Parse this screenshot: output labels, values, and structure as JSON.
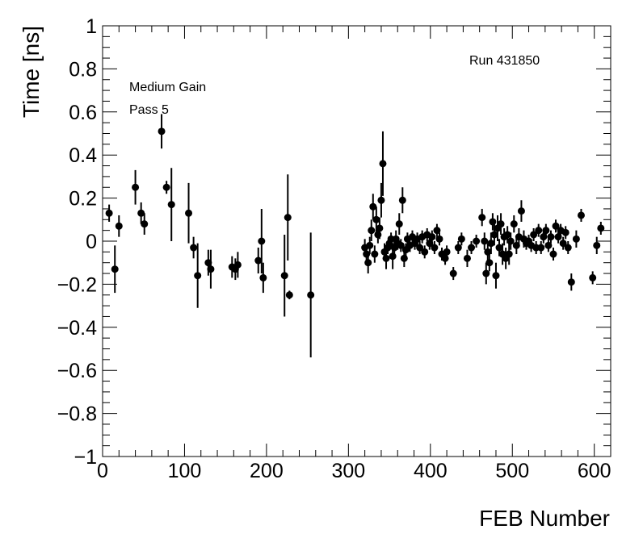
{
  "chart_data": {
    "type": "scatter",
    "xlabel": "FEB Number",
    "ylabel": "Time [ns]",
    "xlim": [
      0,
      620
    ],
    "ylim": [
      -1,
      1
    ],
    "x_ticks": [
      0,
      100,
      200,
      300,
      400,
      500,
      600
    ],
    "y_ticks": [
      -1,
      -0.8,
      -0.6,
      -0.4,
      -0.2,
      0,
      0.2,
      0.4,
      0.6,
      0.8,
      1
    ],
    "y_tick_labels": [
      "−1",
      "−0.8",
      "−0.6",
      "−0.4",
      "−0.2",
      "0",
      "0.2",
      "0.4",
      "0.6",
      "0.8",
      "1"
    ],
    "annotations": {
      "run": "Run 431850",
      "gain": "Medium Gain",
      "pass": "Pass 5"
    },
    "grid": false,
    "marker_color": "#000000",
    "series": [
      {
        "points": [
          {
            "x": 8,
            "y": 0.13,
            "err": 0.04
          },
          {
            "x": 15,
            "y": -0.13,
            "err": 0.11
          },
          {
            "x": 20,
            "y": 0.07,
            "err": 0.05
          },
          {
            "x": 40,
            "y": 0.25,
            "err": 0.08
          },
          {
            "x": 47,
            "y": 0.13,
            "err": 0.05
          },
          {
            "x": 51,
            "y": 0.08,
            "err": 0.05
          },
          {
            "x": 72,
            "y": 0.51,
            "err": 0.08
          },
          {
            "x": 78,
            "y": 0.25,
            "err": 0.03
          },
          {
            "x": 84,
            "y": 0.17,
            "err": 0.17
          },
          {
            "x": 105,
            "y": 0.13,
            "err": 0.14
          },
          {
            "x": 111,
            "y": -0.03,
            "err": 0.05
          },
          {
            "x": 116,
            "y": -0.16,
            "err": 0.15
          },
          {
            "x": 129,
            "y": -0.1,
            "err": 0.06
          },
          {
            "x": 132,
            "y": -0.13,
            "err": 0.09
          },
          {
            "x": 158,
            "y": -0.12,
            "err": 0.05
          },
          {
            "x": 162,
            "y": -0.13,
            "err": 0.05
          },
          {
            "x": 165,
            "y": -0.11,
            "err": 0.06
          },
          {
            "x": 190,
            "y": -0.09,
            "err": 0.06
          },
          {
            "x": 194,
            "y": 0.0,
            "err": 0.15
          },
          {
            "x": 196,
            "y": -0.17,
            "err": 0.07
          },
          {
            "x": 222,
            "y": -0.16,
            "err": 0.19
          },
          {
            "x": 226,
            "y": 0.11,
            "err": 0.2
          },
          {
            "x": 228,
            "y": -0.25,
            "err": 0.02
          },
          {
            "x": 254,
            "y": -0.25,
            "err": 0.29
          },
          {
            "x": 320,
            "y": -0.03,
            "err": 0.04
          },
          {
            "x": 322,
            "y": -0.06,
            "err": 0.04
          },
          {
            "x": 324,
            "y": -0.1,
            "err": 0.05
          },
          {
            "x": 326,
            "y": -0.02,
            "err": 0.04
          },
          {
            "x": 328,
            "y": 0.05,
            "err": 0.05
          },
          {
            "x": 330,
            "y": 0.16,
            "err": 0.06
          },
          {
            "x": 332,
            "y": -0.06,
            "err": 0.04
          },
          {
            "x": 334,
            "y": 0.1,
            "err": 0.06
          },
          {
            "x": 336,
            "y": 0.03,
            "err": 0.04
          },
          {
            "x": 338,
            "y": 0.06,
            "err": 0.05
          },
          {
            "x": 340,
            "y": 0.19,
            "err": 0.08
          },
          {
            "x": 342,
            "y": 0.36,
            "err": 0.15
          },
          {
            "x": 344,
            "y": -0.05,
            "err": 0.04
          },
          {
            "x": 346,
            "y": -0.08,
            "err": 0.05
          },
          {
            "x": 348,
            "y": -0.03,
            "err": 0.03
          },
          {
            "x": 350,
            "y": -0.01,
            "err": 0.03
          },
          {
            "x": 352,
            "y": 0.01,
            "err": 0.03
          },
          {
            "x": 354,
            "y": -0.07,
            "err": 0.06
          },
          {
            "x": 356,
            "y": -0.03,
            "err": 0.03
          },
          {
            "x": 358,
            "y": 0.01,
            "err": 0.04
          },
          {
            "x": 360,
            "y": -0.01,
            "err": 0.03
          },
          {
            "x": 362,
            "y": 0.08,
            "err": 0.05
          },
          {
            "x": 364,
            "y": -0.02,
            "err": 0.03
          },
          {
            "x": 366,
            "y": 0.19,
            "err": 0.06
          },
          {
            "x": 368,
            "y": -0.08,
            "err": 0.04
          },
          {
            "x": 370,
            "y": -0.04,
            "err": 0.03
          },
          {
            "x": 372,
            "y": 0.01,
            "err": 0.03
          },
          {
            "x": 375,
            "y": -0.02,
            "err": 0.03
          },
          {
            "x": 378,
            "y": 0.02,
            "err": 0.03
          },
          {
            "x": 381,
            "y": -0.01,
            "err": 0.03
          },
          {
            "x": 384,
            "y": 0.01,
            "err": 0.03
          },
          {
            "x": 387,
            "y": -0.03,
            "err": 0.03
          },
          {
            "x": 390,
            "y": 0.02,
            "err": 0.03
          },
          {
            "x": 393,
            "y": -0.05,
            "err": 0.03
          },
          {
            "x": 396,
            "y": 0.03,
            "err": 0.03
          },
          {
            "x": 399,
            "y": -0.01,
            "err": 0.03
          },
          {
            "x": 402,
            "y": 0.02,
            "err": 0.03
          },
          {
            "x": 405,
            "y": -0.03,
            "err": 0.03
          },
          {
            "x": 408,
            "y": 0.05,
            "err": 0.03
          },
          {
            "x": 411,
            "y": 0.01,
            "err": 0.03
          },
          {
            "x": 414,
            "y": -0.06,
            "err": 0.03
          },
          {
            "x": 418,
            "y": -0.08,
            "err": 0.03
          },
          {
            "x": 420,
            "y": -0.05,
            "err": 0.03
          },
          {
            "x": 428,
            "y": -0.15,
            "err": 0.03
          },
          {
            "x": 434,
            "y": -0.03,
            "err": 0.03
          },
          {
            "x": 438,
            "y": 0.01,
            "err": 0.03
          },
          {
            "x": 445,
            "y": -0.08,
            "err": 0.04
          },
          {
            "x": 450,
            "y": -0.03,
            "err": 0.03
          },
          {
            "x": 456,
            "y": 0.0,
            "err": 0.03
          },
          {
            "x": 463,
            "y": 0.11,
            "err": 0.04
          },
          {
            "x": 466,
            "y": 0.0,
            "err": 0.04
          },
          {
            "x": 468,
            "y": -0.15,
            "err": 0.05
          },
          {
            "x": 470,
            "y": -0.05,
            "err": 0.04
          },
          {
            "x": 472,
            "y": -0.1,
            "err": 0.04
          },
          {
            "x": 474,
            "y": -0.01,
            "err": 0.05
          },
          {
            "x": 476,
            "y": 0.09,
            "err": 0.04
          },
          {
            "x": 478,
            "y": 0.03,
            "err": 0.05
          },
          {
            "x": 480,
            "y": -0.16,
            "err": 0.06
          },
          {
            "x": 482,
            "y": 0.06,
            "err": 0.06
          },
          {
            "x": 484,
            "y": -0.03,
            "err": 0.04
          },
          {
            "x": 486,
            "y": 0.08,
            "err": 0.05
          },
          {
            "x": 488,
            "y": -0.06,
            "err": 0.05
          },
          {
            "x": 490,
            "y": 0.02,
            "err": 0.04
          },
          {
            "x": 492,
            "y": -0.08,
            "err": 0.05
          },
          {
            "x": 494,
            "y": 0.03,
            "err": 0.04
          },
          {
            "x": 496,
            "y": -0.06,
            "err": 0.05
          },
          {
            "x": 498,
            "y": 0.0,
            "err": 0.04
          },
          {
            "x": 502,
            "y": 0.08,
            "err": 0.04
          },
          {
            "x": 505,
            "y": -0.02,
            "err": 0.04
          },
          {
            "x": 508,
            "y": 0.02,
            "err": 0.04
          },
          {
            "x": 511,
            "y": 0.14,
            "err": 0.05
          },
          {
            "x": 514,
            "y": 0.01,
            "err": 0.04
          },
          {
            "x": 517,
            "y": -0.01,
            "err": 0.03
          },
          {
            "x": 520,
            "y": 0.0,
            "err": 0.03
          },
          {
            "x": 523,
            "y": -0.02,
            "err": 0.03
          },
          {
            "x": 526,
            "y": 0.03,
            "err": 0.03
          },
          {
            "x": 529,
            "y": -0.03,
            "err": 0.03
          },
          {
            "x": 532,
            "y": 0.05,
            "err": 0.03
          },
          {
            "x": 535,
            "y": -0.03,
            "err": 0.03
          },
          {
            "x": 538,
            "y": 0.02,
            "err": 0.03
          },
          {
            "x": 541,
            "y": 0.05,
            "err": 0.03
          },
          {
            "x": 544,
            "y": -0.02,
            "err": 0.03
          },
          {
            "x": 547,
            "y": 0.02,
            "err": 0.03
          },
          {
            "x": 550,
            "y": -0.06,
            "err": 0.03
          },
          {
            "x": 553,
            "y": 0.07,
            "err": 0.03
          },
          {
            "x": 556,
            "y": 0.02,
            "err": 0.03
          },
          {
            "x": 559,
            "y": 0.05,
            "err": 0.03
          },
          {
            "x": 562,
            "y": -0.01,
            "err": 0.03
          },
          {
            "x": 565,
            "y": 0.04,
            "err": 0.03
          },
          {
            "x": 568,
            "y": -0.03,
            "err": 0.03
          },
          {
            "x": 572,
            "y": -0.19,
            "err": 0.04
          },
          {
            "x": 578,
            "y": 0.01,
            "err": 0.04
          },
          {
            "x": 584,
            "y": 0.12,
            "err": 0.03
          },
          {
            "x": 598,
            "y": -0.17,
            "err": 0.03
          },
          {
            "x": 603,
            "y": -0.02,
            "err": 0.04
          },
          {
            "x": 608,
            "y": 0.06,
            "err": 0.03
          }
        ]
      }
    ]
  }
}
